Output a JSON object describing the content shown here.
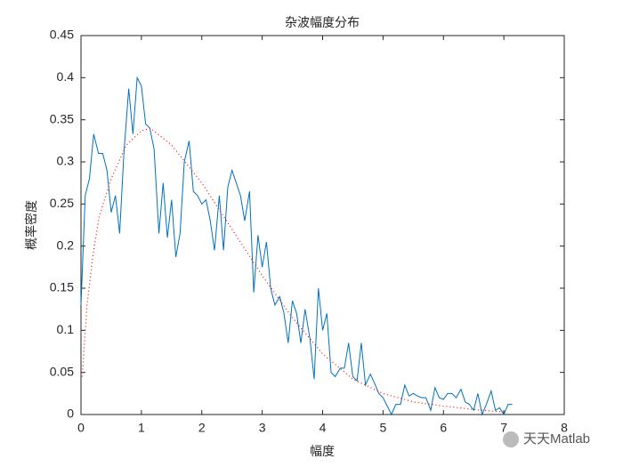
{
  "chart_data": {
    "type": "line",
    "title": "杂波幅度分布",
    "xlabel": "幅度",
    "ylabel": "概率密度",
    "watermark": "天天Matlab",
    "xlim": [
      0,
      8
    ],
    "xticks": [
      0,
      1,
      2,
      3,
      4,
      5,
      6,
      7,
      8
    ],
    "ylim": [
      0,
      0.45
    ],
    "yticks": [
      0,
      0.05,
      0.1,
      0.15,
      0.2,
      0.25,
      0.3,
      0.35,
      0.4,
      0.45
    ],
    "series": [
      {
        "color": "#0072bd",
        "style": "solid",
        "x": [
          0,
          0.07,
          0.14,
          0.21,
          0.29,
          0.36,
          0.43,
          0.5,
          0.57,
          0.64,
          0.71,
          0.79,
          0.86,
          0.93,
          1.0,
          1.07,
          1.14,
          1.21,
          1.29,
          1.36,
          1.43,
          1.5,
          1.57,
          1.64,
          1.71,
          1.79,
          1.86,
          1.93,
          2.0,
          2.07,
          2.14,
          2.21,
          2.29,
          2.36,
          2.43,
          2.5,
          2.57,
          2.64,
          2.71,
          2.79,
          2.86,
          2.93,
          3.0,
          3.07,
          3.14,
          3.21,
          3.29,
          3.36,
          3.43,
          3.5,
          3.57,
          3.64,
          3.71,
          3.79,
          3.86,
          3.93,
          4.0,
          4.07,
          4.14,
          4.21,
          4.29,
          4.36,
          4.43,
          4.5,
          4.57,
          4.64,
          4.71,
          4.79,
          4.86,
          4.93,
          5.0,
          5.07,
          5.14,
          5.21,
          5.29,
          5.36,
          5.43,
          5.5,
          5.57,
          5.64,
          5.71,
          5.79,
          5.86,
          5.93,
          6.0,
          6.07,
          6.14,
          6.21,
          6.29,
          6.36,
          6.43,
          6.5,
          6.57,
          6.64,
          6.71,
          6.79,
          6.86,
          6.93,
          7.0,
          7.07,
          7.14
        ],
        "values": [
          0.13,
          0.26,
          0.28,
          0.333,
          0.31,
          0.31,
          0.29,
          0.24,
          0.26,
          0.215,
          0.31,
          0.387,
          0.333,
          0.4,
          0.39,
          0.345,
          0.34,
          0.315,
          0.215,
          0.275,
          0.21,
          0.255,
          0.187,
          0.215,
          0.3,
          0.325,
          0.265,
          0.26,
          0.25,
          0.255,
          0.23,
          0.195,
          0.26,
          0.195,
          0.27,
          0.29,
          0.275,
          0.26,
          0.23,
          0.265,
          0.145,
          0.213,
          0.175,
          0.205,
          0.15,
          0.13,
          0.14,
          0.12,
          0.085,
          0.135,
          0.12,
          0.085,
          0.125,
          0.09,
          0.042,
          0.15,
          0.1,
          0.12,
          0.05,
          0.045,
          0.055,
          0.055,
          0.085,
          0.045,
          0.04,
          0.085,
          0.035,
          0.048,
          0.037,
          0.025,
          0.02,
          0.01,
          0,
          0.012,
          0.012,
          0.035,
          0.022,
          0.025,
          0.022,
          0.02,
          0.02,
          0.005,
          0.032,
          0.02,
          0.018,
          0.025,
          0.025,
          0.02,
          0.03,
          0.015,
          0.012,
          0.005,
          0.025,
          0,
          0.012,
          0.028,
          0.005,
          0.008,
          0,
          0.012,
          0.012
        ]
      },
      {
        "color": "#ff0000",
        "style": "dotted",
        "x": [
          0.02,
          0.1,
          0.2,
          0.3,
          0.5,
          0.75,
          1.0,
          1.15,
          1.5,
          2.0,
          2.5,
          3.0,
          3.5,
          4.0,
          4.5,
          5.0,
          5.5,
          6.0,
          6.5,
          7.0
        ],
        "values": [
          0.045,
          0.13,
          0.19,
          0.235,
          0.28,
          0.32,
          0.337,
          0.34,
          0.32,
          0.275,
          0.22,
          0.165,
          0.115,
          0.072,
          0.042,
          0.025,
          0.015,
          0.01,
          0.006,
          0.003
        ]
      }
    ]
  }
}
